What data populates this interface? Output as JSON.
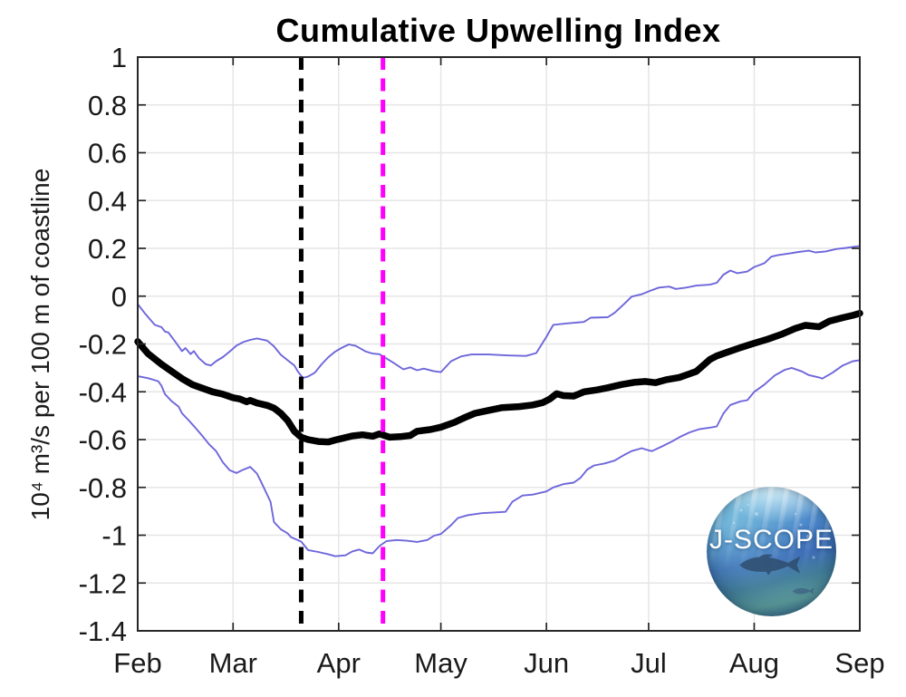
{
  "chart_data": {
    "type": "line",
    "title": "Cumulative Upwelling Index",
    "ylabel": "10⁴ m³/s per 100 m of coastline",
    "xlabel": "",
    "grid": true,
    "x_unit": "days since Feb 1",
    "xlim": [
      0,
      212
    ],
    "ylim": [
      -1.4,
      1
    ],
    "x_tick_labels": [
      "Feb",
      "Mar",
      "Apr",
      "May",
      "Jun",
      "Jul",
      "Aug",
      "Sep"
    ],
    "x_tick_days": [
      0,
      28,
      59,
      89,
      120,
      150,
      181,
      212
    ],
    "y_ticks": [
      1,
      0.8,
      0.6,
      0.4,
      0.2,
      0,
      -0.2,
      -0.4,
      -0.6,
      -0.8,
      -1,
      -1.2,
      -1.4
    ],
    "series": [
      {
        "name": "mean-cumulative-upwelling",
        "color": "#000000",
        "width": 7.5,
        "points": [
          [
            0,
            -0.19
          ],
          [
            3,
            -0.24
          ],
          [
            7,
            -0.285
          ],
          [
            10,
            -0.315
          ],
          [
            13,
            -0.345
          ],
          [
            16,
            -0.37
          ],
          [
            19,
            -0.385
          ],
          [
            22,
            -0.4
          ],
          [
            25,
            -0.41
          ],
          [
            28,
            -0.425
          ],
          [
            30,
            -0.43
          ],
          [
            32,
            -0.442
          ],
          [
            33,
            -0.436
          ],
          [
            35,
            -0.447
          ],
          [
            38,
            -0.457
          ],
          [
            40,
            -0.468
          ],
          [
            42,
            -0.49
          ],
          [
            44,
            -0.52
          ],
          [
            46,
            -0.565
          ],
          [
            48,
            -0.59
          ],
          [
            50,
            -0.6
          ],
          [
            53,
            -0.608
          ],
          [
            56,
            -0.61
          ],
          [
            58,
            -0.602
          ],
          [
            60,
            -0.595
          ],
          [
            63,
            -0.585
          ],
          [
            66,
            -0.58
          ],
          [
            69,
            -0.586
          ],
          [
            71,
            -0.576
          ],
          [
            74,
            -0.59
          ],
          [
            77,
            -0.588
          ],
          [
            80,
            -0.583
          ],
          [
            82,
            -0.565
          ],
          [
            86,
            -0.558
          ],
          [
            89,
            -0.548
          ],
          [
            93,
            -0.528
          ],
          [
            96,
            -0.508
          ],
          [
            99,
            -0.49
          ],
          [
            103,
            -0.478
          ],
          [
            107,
            -0.466
          ],
          [
            112,
            -0.462
          ],
          [
            116,
            -0.455
          ],
          [
            119,
            -0.445
          ],
          [
            121,
            -0.43
          ],
          [
            123,
            -0.408
          ],
          [
            125,
            -0.416
          ],
          [
            128,
            -0.418
          ],
          [
            131,
            -0.4
          ],
          [
            135,
            -0.392
          ],
          [
            138,
            -0.383
          ],
          [
            142,
            -0.37
          ],
          [
            146,
            -0.36
          ],
          [
            149,
            -0.357
          ],
          [
            152,
            -0.362
          ],
          [
            155,
            -0.35
          ],
          [
            159,
            -0.34
          ],
          [
            162,
            -0.325
          ],
          [
            164,
            -0.315
          ],
          [
            166,
            -0.29
          ],
          [
            168,
            -0.265
          ],
          [
            170,
            -0.25
          ],
          [
            173,
            -0.235
          ],
          [
            177,
            -0.215
          ],
          [
            181,
            -0.197
          ],
          [
            185,
            -0.18
          ],
          [
            189,
            -0.16
          ],
          [
            193,
            -0.135
          ],
          [
            196,
            -0.122
          ],
          [
            200,
            -0.128
          ],
          [
            203,
            -0.105
          ],
          [
            207,
            -0.09
          ],
          [
            210,
            -0.08
          ],
          [
            212,
            -0.072
          ]
        ]
      },
      {
        "name": "upper-bound",
        "color": "#6e66db",
        "width": 1.9,
        "points": [
          [
            0,
            -0.033
          ],
          [
            2,
            -0.07
          ],
          [
            5,
            -0.12
          ],
          [
            7,
            -0.13
          ],
          [
            8,
            -0.148
          ],
          [
            9,
            -0.152
          ],
          [
            11,
            -0.19
          ],
          [
            13,
            -0.23
          ],
          [
            14,
            -0.217
          ],
          [
            15.5,
            -0.242
          ],
          [
            16.5,
            -0.23
          ],
          [
            18,
            -0.26
          ],
          [
            20,
            -0.285
          ],
          [
            21.5,
            -0.29
          ],
          [
            23,
            -0.272
          ],
          [
            25,
            -0.255
          ],
          [
            27,
            -0.232
          ],
          [
            29,
            -0.207
          ],
          [
            31,
            -0.192
          ],
          [
            33,
            -0.183
          ],
          [
            35,
            -0.177
          ],
          [
            38,
            -0.186
          ],
          [
            40,
            -0.21
          ],
          [
            42,
            -0.245
          ],
          [
            44,
            -0.268
          ],
          [
            46,
            -0.29
          ],
          [
            47,
            -0.315
          ],
          [
            48.5,
            -0.342
          ],
          [
            50,
            -0.336
          ],
          [
            52,
            -0.32
          ],
          [
            54,
            -0.285
          ],
          [
            56,
            -0.255
          ],
          [
            58,
            -0.232
          ],
          [
            60,
            -0.215
          ],
          [
            62,
            -0.202
          ],
          [
            64,
            -0.208
          ],
          [
            67,
            -0.232
          ],
          [
            69,
            -0.24
          ],
          [
            71,
            -0.243
          ],
          [
            75,
            -0.278
          ],
          [
            78,
            -0.306
          ],
          [
            80,
            -0.298
          ],
          [
            82,
            -0.31
          ],
          [
            84,
            -0.303
          ],
          [
            87,
            -0.314
          ],
          [
            89,
            -0.318
          ],
          [
            92,
            -0.272
          ],
          [
            95,
            -0.252
          ],
          [
            98,
            -0.244
          ],
          [
            103,
            -0.244
          ],
          [
            109,
            -0.248
          ],
          [
            114,
            -0.25
          ],
          [
            117,
            -0.238
          ],
          [
            120,
            -0.17
          ],
          [
            122,
            -0.12
          ],
          [
            126,
            -0.114
          ],
          [
            131,
            -0.108
          ],
          [
            133,
            -0.09
          ],
          [
            138,
            -0.088
          ],
          [
            140,
            -0.07
          ],
          [
            143,
            -0.03
          ],
          [
            145,
            -0.002
          ],
          [
            148,
            0.008
          ],
          [
            150,
            0.02
          ],
          [
            153,
            0.036
          ],
          [
            156,
            0.04
          ],
          [
            158,
            0.03
          ],
          [
            161,
            0.036
          ],
          [
            164,
            0.044
          ],
          [
            168,
            0.048
          ],
          [
            170,
            0.056
          ],
          [
            172,
            0.09
          ],
          [
            174,
            0.107
          ],
          [
            176,
            0.096
          ],
          [
            179,
            0.103
          ],
          [
            181,
            0.122
          ],
          [
            184,
            0.138
          ],
          [
            186,
            0.165
          ],
          [
            188,
            0.172
          ],
          [
            191,
            0.178
          ],
          [
            194,
            0.185
          ],
          [
            197,
            0.19
          ],
          [
            199,
            0.183
          ],
          [
            202,
            0.187
          ],
          [
            205,
            0.197
          ],
          [
            208,
            0.202
          ],
          [
            212,
            0.21
          ]
        ]
      },
      {
        "name": "lower-bound",
        "color": "#6e66db",
        "width": 1.9,
        "points": [
          [
            0,
            -0.335
          ],
          [
            3,
            -0.343
          ],
          [
            6,
            -0.356
          ],
          [
            7,
            -0.375
          ],
          [
            8,
            -0.41
          ],
          [
            10,
            -0.44
          ],
          [
            12,
            -0.462
          ],
          [
            13,
            -0.49
          ],
          [
            15,
            -0.52
          ],
          [
            17,
            -0.552
          ],
          [
            19,
            -0.585
          ],
          [
            21,
            -0.62
          ],
          [
            23,
            -0.648
          ],
          [
            25,
            -0.695
          ],
          [
            27,
            -0.728
          ],
          [
            29,
            -0.74
          ],
          [
            31,
            -0.726
          ],
          [
            33,
            -0.714
          ],
          [
            35,
            -0.742
          ],
          [
            36,
            -0.77
          ],
          [
            37,
            -0.8
          ],
          [
            39,
            -0.86
          ],
          [
            40,
            -0.945
          ],
          [
            42,
            -0.975
          ],
          [
            44,
            -0.992
          ],
          [
            45,
            -1.008
          ],
          [
            48,
            -1.027
          ],
          [
            50,
            -1.062
          ],
          [
            53,
            -1.07
          ],
          [
            56,
            -1.08
          ],
          [
            58,
            -1.088
          ],
          [
            61,
            -1.084
          ],
          [
            63,
            -1.068
          ],
          [
            65,
            -1.06
          ],
          [
            67,
            -1.072
          ],
          [
            69,
            -1.076
          ],
          [
            71,
            -1.045
          ],
          [
            73,
            -1.025
          ],
          [
            76,
            -1.02
          ],
          [
            79,
            -1.023
          ],
          [
            82,
            -1.028
          ],
          [
            85,
            -1.02
          ],
          [
            87,
            -1.002
          ],
          [
            89,
            -0.995
          ],
          [
            92,
            -0.958
          ],
          [
            94,
            -0.928
          ],
          [
            97,
            -0.916
          ],
          [
            101,
            -0.908
          ],
          [
            108,
            -0.902
          ],
          [
            110,
            -0.86
          ],
          [
            113,
            -0.834
          ],
          [
            116,
            -0.83
          ],
          [
            120,
            -0.817
          ],
          [
            122,
            -0.8
          ],
          [
            125,
            -0.786
          ],
          [
            128,
            -0.78
          ],
          [
            130,
            -0.76
          ],
          [
            132,
            -0.725
          ],
          [
            134,
            -0.708
          ],
          [
            137,
            -0.7
          ],
          [
            140,
            -0.688
          ],
          [
            143,
            -0.663
          ],
          [
            145,
            -0.648
          ],
          [
            148,
            -0.636
          ],
          [
            150,
            -0.645
          ],
          [
            151,
            -0.648
          ],
          [
            154,
            -0.628
          ],
          [
            157,
            -0.607
          ],
          [
            159,
            -0.59
          ],
          [
            162,
            -0.57
          ],
          [
            165,
            -0.556
          ],
          [
            168,
            -0.55
          ],
          [
            170,
            -0.545
          ],
          [
            172,
            -0.49
          ],
          [
            174,
            -0.455
          ],
          [
            177,
            -0.44
          ],
          [
            179,
            -0.435
          ],
          [
            181,
            -0.4
          ],
          [
            184,
            -0.37
          ],
          [
            187,
            -0.332
          ],
          [
            190,
            -0.308
          ],
          [
            192,
            -0.3
          ],
          [
            195,
            -0.315
          ],
          [
            197,
            -0.33
          ],
          [
            200,
            -0.34
          ],
          [
            201,
            -0.345
          ],
          [
            204,
            -0.32
          ],
          [
            207,
            -0.29
          ],
          [
            210,
            -0.272
          ],
          [
            212,
            -0.268
          ]
        ]
      }
    ],
    "vlines": [
      {
        "name": "black-dashed-marker",
        "day": 48,
        "color": "#000000",
        "style": "dashed",
        "width": 5
      },
      {
        "name": "magenta-dashed-marker",
        "day": 72,
        "color": "#ff00ff",
        "style": "dashed",
        "width": 5
      }
    ],
    "legend": null
  },
  "logo": {
    "text": "J-SCOPE"
  },
  "colors": {
    "background": "#ffffff",
    "grid": "#e6e6e6",
    "axis": "#262626",
    "tick_label": "#1a1a1a",
    "bound_line": "#6e66db",
    "magenta": "#ff00ff"
  }
}
